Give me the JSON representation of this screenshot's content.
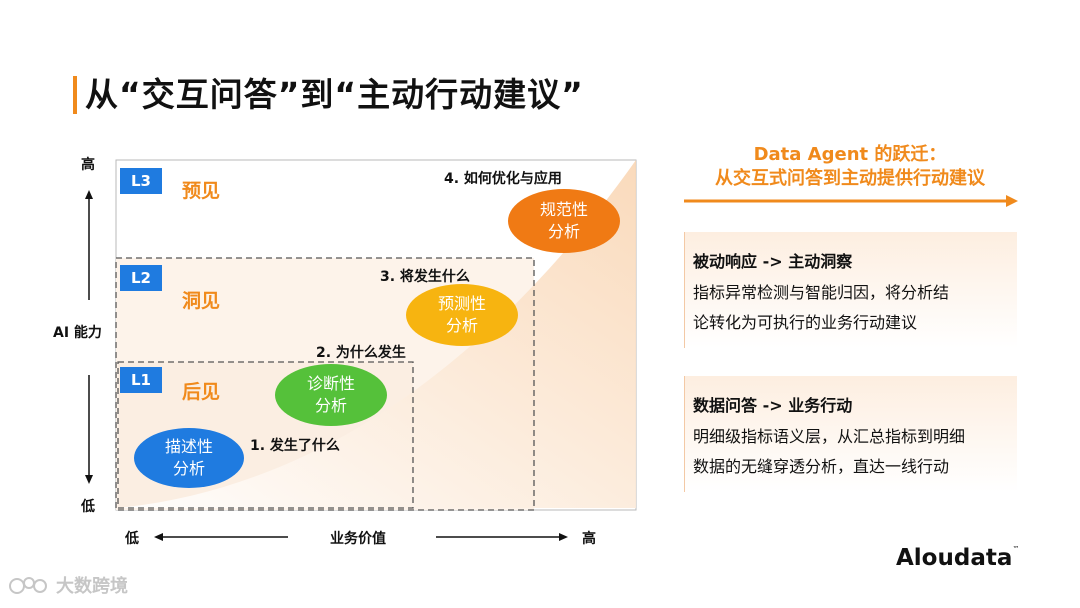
{
  "title": "从“交互问答”到“主动行动建议”",
  "chart": {
    "y_axis": {
      "label": "AI 能力",
      "high": "高",
      "low": "低"
    },
    "x_axis": {
      "label": "业务价值",
      "low": "低",
      "high": "高"
    },
    "levels": [
      {
        "tag": "L3",
        "name": "预见"
      },
      {
        "tag": "L2",
        "name": "洞见"
      },
      {
        "tag": "L1",
        "name": "后见"
      }
    ],
    "stages": [
      {
        "question": "1. 发生了什么",
        "line1": "描述性",
        "line2": "分析",
        "color": "#1f7be0"
      },
      {
        "question": "2. 为什么发生",
        "line1": "诊断性",
        "line2": "分析",
        "color": "#55c13a"
      },
      {
        "question": "3. 将发生什么",
        "line1": "预测性",
        "line2": "分析",
        "color": "#f7b410"
      },
      {
        "question": "4. 如何优化与应用",
        "line1": "规范性",
        "line2": "分析",
        "color": "#f07a14"
      }
    ]
  },
  "right": {
    "header_line1": "Data Agent 的跃迁：",
    "header_line2": "从交互式问答到主动提供行动建议",
    "cards": [
      {
        "title": "被动响应 -> 主动洞察",
        "line1": "指标异常检测与智能归因，将分析结",
        "line2": "论转化为可执行的业务行动建议"
      },
      {
        "title": "数据问答 -> 业务行动",
        "line1": "明细级指标语义层，从汇总指标到明细",
        "line2": "数据的无缝穿透分析，直达一线行动"
      }
    ]
  },
  "brand": {
    "logo": "Aloudata",
    "tm": "™"
  },
  "watermark": "大数跨境",
  "colors": {
    "accent": "#f08a1c",
    "tag_blue": "#1f7be0"
  }
}
